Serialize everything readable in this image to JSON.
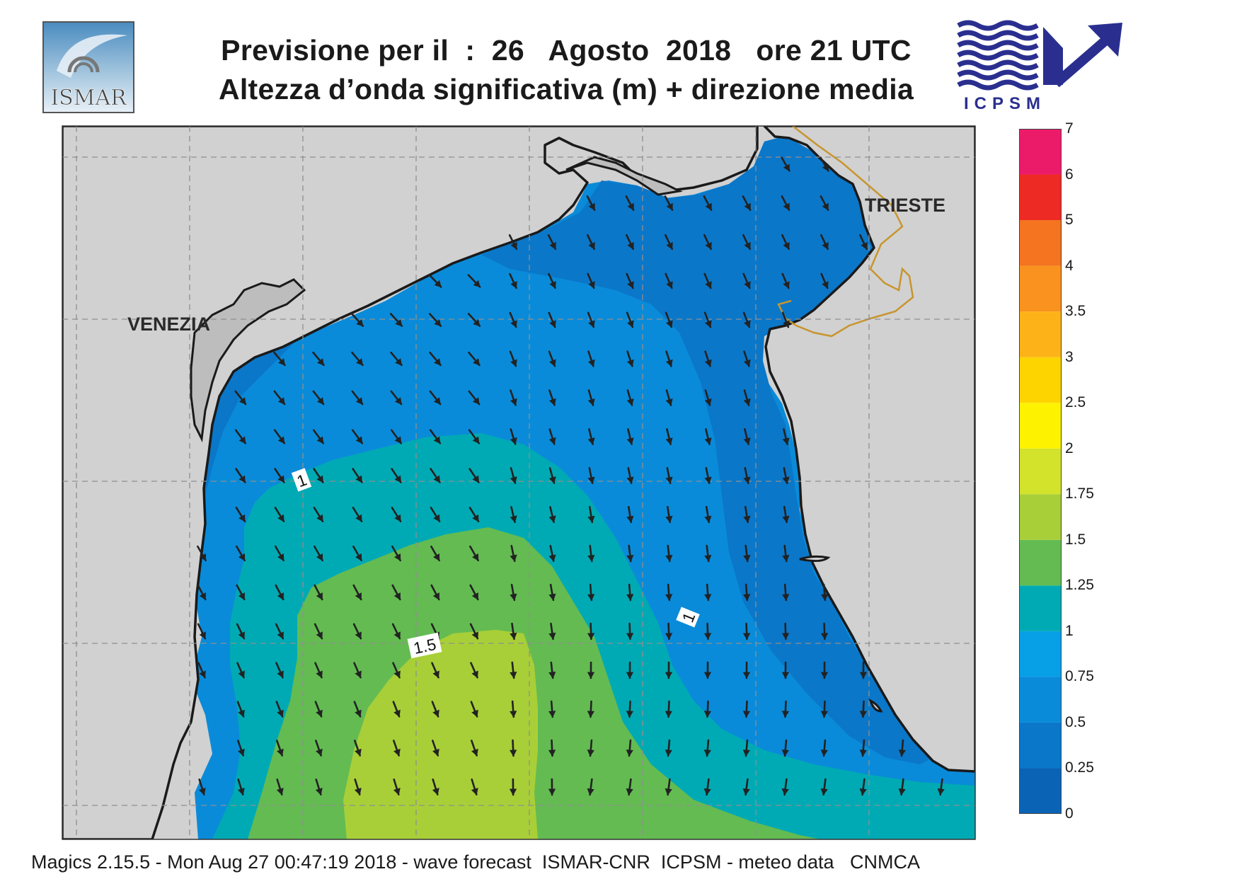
{
  "header": {
    "title_line1": "Previsione per il  :  26   Agosto  2018   ore 21 UTC",
    "title_line2": "Altezza d’onda significativa (m) + direzione media",
    "logo_left_text": "ISMAR",
    "logo_right_text": "ICPSM"
  },
  "map": {
    "place_labels": {
      "venezia": "VENEZIA",
      "trieste": "TRIESTE"
    },
    "contour_labels": {
      "west": "1",
      "east": "1",
      "center": "1.5"
    },
    "land_color": "#d1d1d1",
    "border_color": "#c8952e",
    "arrow_color": "#222222"
  },
  "legend": {
    "units": "m",
    "levels": [
      "0",
      "0.25",
      "0.5",
      "0.75",
      "1",
      "1.25",
      "1.5",
      "1.75",
      "2",
      "2.5",
      "3",
      "3.5",
      "4",
      "5",
      "6",
      "7"
    ],
    "colors": [
      "#0a63b5",
      "#0b77c9",
      "#0a8bd9",
      "#079fe6",
      "#00aab4",
      "#64bb52",
      "#a8cf38",
      "#d3e22a",
      "#fdf200",
      "#fdd400",
      "#fdb318",
      "#f9921e",
      "#f47420",
      "#ee2a24",
      "#ec1b6a"
    ]
  },
  "footer": {
    "text": "Magics 2.15.5 - Mon Aug 27 00:47:19 2018 - wave forecast  ISMAR-CNR  ICPSM - meteo data   CNMCA"
  }
}
